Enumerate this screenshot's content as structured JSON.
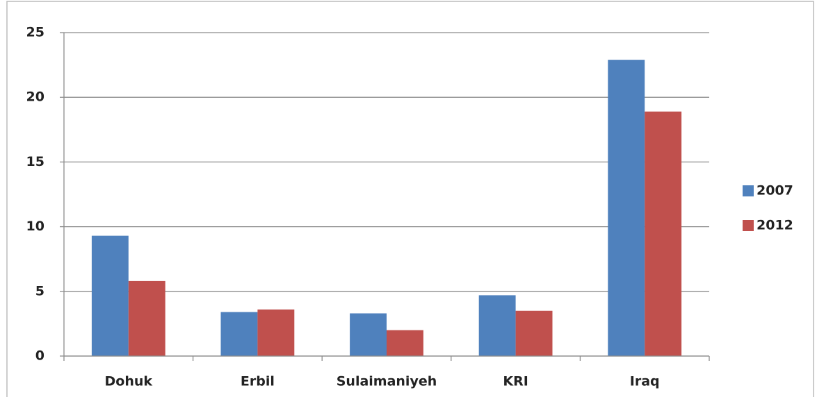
{
  "chart_data": {
    "type": "bar",
    "categories": [
      "Dohuk",
      "Erbil",
      "Sulaimaniyeh",
      "KRI",
      "Iraq"
    ],
    "series": [
      {
        "name": "2007",
        "color": "#4f81bd",
        "values": [
          9.3,
          3.4,
          3.3,
          4.7,
          22.9
        ]
      },
      {
        "name": "2012",
        "color": "#c0504d",
        "values": [
          5.8,
          3.6,
          2.0,
          3.5,
          18.9
        ]
      }
    ],
    "ylim": [
      0,
      25
    ],
    "yticks": [
      0,
      5,
      10,
      15,
      20,
      25
    ],
    "grid": true,
    "legend": "right"
  }
}
